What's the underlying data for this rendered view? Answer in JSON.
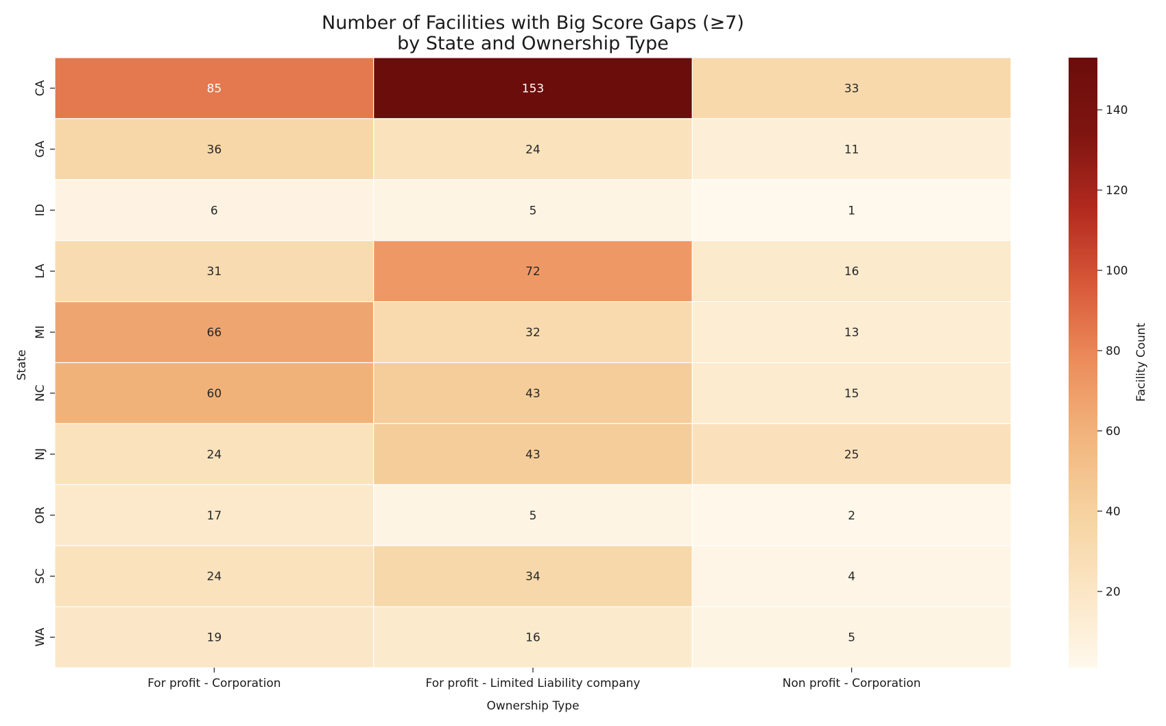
{
  "chart_data": {
    "type": "heatmap",
    "title_lines": [
      "Number of Facilities with Big Score Gaps (≥7)",
      "by State and Ownership Type"
    ],
    "xlabel": "Ownership Type",
    "ylabel": "State",
    "x_categories": [
      "For profit - Corporation",
      "For profit - Limited Liability company",
      "Non profit - Corporation"
    ],
    "y_categories": [
      "CA",
      "GA",
      "ID",
      "LA",
      "MI",
      "NC",
      "NJ",
      "OR",
      "SC",
      "WA"
    ],
    "values": [
      [
        85,
        153,
        33
      ],
      [
        36,
        24,
        11
      ],
      [
        6,
        5,
        1
      ],
      [
        31,
        72,
        16
      ],
      [
        66,
        32,
        13
      ],
      [
        60,
        43,
        15
      ],
      [
        24,
        43,
        25
      ],
      [
        17,
        5,
        2
      ],
      [
        24,
        34,
        4
      ],
      [
        19,
        16,
        5
      ]
    ],
    "colorbar": {
      "label": "Facility Count",
      "min": 1,
      "max": 153,
      "ticks": [
        20,
        40,
        60,
        80,
        100,
        120,
        140
      ],
      "colormap": "OrRd-like",
      "color_stops": [
        "#fff8ec",
        "#fbe6c5",
        "#f6d3a1",
        "#f2b67e",
        "#ec8e5c",
        "#d95a3a",
        "#b32a1f",
        "#7f1510",
        "#6b0d0b"
      ]
    },
    "annotate": true,
    "grid": false
  }
}
